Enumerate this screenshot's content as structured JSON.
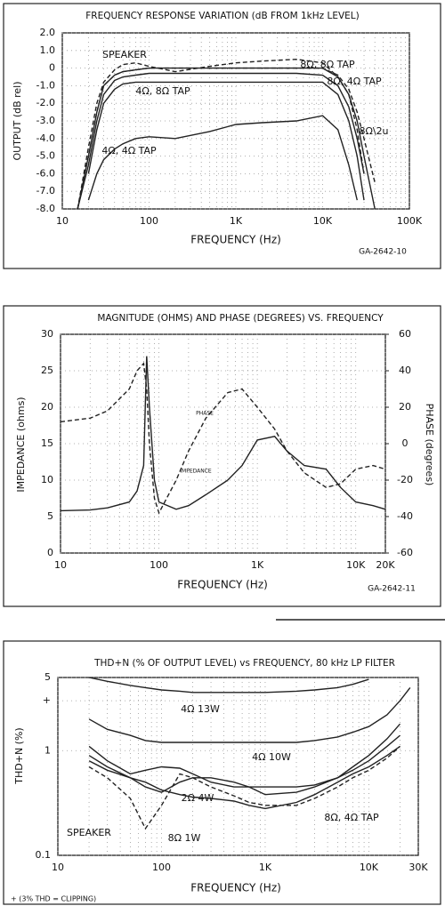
{
  "chart_data": [
    {
      "type": "line",
      "title": "FREQUENCY RESPONSE VARIATION (dB FROM 1kHz LEVEL)",
      "y_label": "OUTPUT (dB rel)",
      "x_label": "FREQUENCY (Hz)",
      "code": "GA-2642-10",
      "log_x": true,
      "grid": true,
      "xlim": [
        10,
        100000
      ],
      "ylim": [
        -8,
        2
      ],
      "xticks": [
        10,
        100,
        {
          "value": 1000,
          "label": "1K"
        },
        {
          "value": 10000,
          "label": "10K"
        },
        {
          "value": 100000,
          "label": "100K"
        }
      ],
      "yticks": [
        {
          "value": 2,
          "label": "2.0"
        },
        {
          "value": 1,
          "label": "1.0"
        },
        0,
        {
          "value": -1,
          "label": "-1.0"
        },
        {
          "value": -2,
          "label": "-2.0"
        },
        {
          "value": -3,
          "label": "-3.0"
        },
        {
          "value": -4,
          "label": "-4.0"
        },
        {
          "value": -5,
          "label": "-5.0"
        },
        {
          "value": -6,
          "label": "-6.0"
        },
        {
          "value": -7,
          "label": "-7.0"
        },
        {
          "value": -8,
          "label": "-8.0"
        }
      ],
      "x": [
        15,
        20,
        25,
        30,
        40,
        50,
        70,
        100,
        200,
        500,
        1000,
        2000,
        5000,
        10000,
        15000,
        20000,
        25000,
        30000,
        40000
      ],
      "series": [
        {
          "name": "8Ω, 8Ω TAP",
          "color": "#222",
          "values": [
            -8,
            -5,
            -2.5,
            -1,
            -0.4,
            -0.2,
            -0.1,
            0,
            0,
            0,
            0,
            0,
            0,
            0,
            -0.5,
            -1.5,
            -3,
            -5,
            -8
          ]
        },
        {
          "name": "8Ω, 4Ω TAP",
          "color": "#222",
          "values": [
            -8,
            -5.5,
            -3,
            -1.5,
            -0.7,
            -0.5,
            -0.4,
            -0.3,
            -0.3,
            -0.3,
            -0.3,
            -0.3,
            -0.3,
            -0.4,
            -1,
            -2.2,
            -4,
            -6,
            null
          ]
        },
        {
          "name": "4Ω, 8Ω TAP",
          "color": "#222",
          "values": [
            null,
            -6,
            -3.5,
            -2,
            -1.2,
            -0.9,
            -0.8,
            -0.8,
            -0.8,
            -0.8,
            -0.8,
            -0.8,
            -0.8,
            -0.8,
            -1.5,
            -3,
            -5,
            -7.5,
            null
          ]
        },
        {
          "name": "4Ω, 4Ω TAP",
          "color": "#222",
          "values": [
            null,
            -7.5,
            -6,
            -5.2,
            -4.6,
            -4.3,
            -4,
            -3.9,
            -4,
            -3.6,
            -3.2,
            -3.1,
            -3,
            -2.7,
            -3.5,
            -5.5,
            -7.5,
            null,
            null
          ]
        },
        {
          "name": "SPEAKER",
          "color": "#222",
          "dash": true,
          "values": [
            -8,
            -4.5,
            -2,
            -0.8,
            -0.1,
            0.2,
            0.3,
            0.1,
            -0.2,
            0.1,
            0.3,
            0.4,
            0.5,
            0.3,
            -0.5,
            -1.5,
            -3.5,
            -6,
            null
          ]
        },
        {
          "name": "8Ω\\2u",
          "color": "#222",
          "dash": true,
          "values": [
            -8,
            -5,
            -2.5,
            -1,
            -0.4,
            -0.2,
            -0.1,
            0,
            0,
            0,
            0,
            0,
            0,
            0,
            -0.4,
            -1.2,
            -2.5,
            -4,
            -6.5
          ]
        }
      ]
    },
    {
      "type": "line",
      "title": "MAGNITUDE (OHMS) AND PHASE (DEGREES) VS. FREQUENCY",
      "y_label": "IMPEDANCE (ohms)",
      "y2_label": "PHASE (degrees)",
      "x_label": "FREQUENCY (Hz)",
      "code": "GA-2642-11",
      "log_x": true,
      "grid": true,
      "xlim": [
        10,
        20000
      ],
      "ylim": [
        0,
        30
      ],
      "y2lim": [
        -60,
        60
      ],
      "xticks": [
        10,
        100,
        {
          "value": 1000,
          "label": "1K"
        },
        {
          "value": 10000,
          "label": "10K"
        },
        {
          "value": 20000,
          "label": "20K"
        }
      ],
      "yticks": [
        0,
        5,
        10,
        15,
        20,
        25,
        30
      ],
      "y2ticks": [
        -60,
        -40,
        -20,
        0,
        20,
        40,
        60
      ],
      "x": [
        10,
        20,
        30,
        50,
        60,
        70,
        75,
        80,
        90,
        100,
        150,
        200,
        300,
        500,
        700,
        1000,
        1500,
        2000,
        3000,
        5000,
        7000,
        10000,
        15000,
        20000
      ],
      "series": [
        {
          "name": "IMPEDANCE",
          "color": "#222",
          "values": [
            5.8,
            5.9,
            6.2,
            7,
            8.5,
            12,
            27,
            20,
            10,
            7,
            6,
            6.5,
            8,
            10,
            12,
            15.5,
            16,
            14,
            12,
            11.5,
            9,
            7,
            6.5,
            6
          ]
        },
        {
          "name": "PHASE",
          "color": "#222",
          "dash": true,
          "axis": "y2",
          "values": [
            12,
            14,
            18,
            30,
            40,
            44,
            30,
            0,
            -30,
            -38,
            -20,
            -4,
            14,
            28,
            30,
            20,
            8,
            -4,
            -16,
            -24,
            -22,
            -14,
            -12,
            -14
          ]
        }
      ]
    },
    {
      "type": "line",
      "title": "THD+N (% OF OUTPUT LEVEL) vs FREQUENCY, 80 kHz LP FILTER",
      "y_label": "THD+N (%)",
      "x_label": "FREQUENCY (Hz)",
      "footnote": "+ (3% THD = CLIPPING)",
      "log_x": true,
      "log_y": true,
      "grid": true,
      "xlim": [
        10,
        30000
      ],
      "ylim": [
        0.1,
        5
      ],
      "xticks": [
        10,
        100,
        {
          "value": 1000,
          "label": "1K"
        },
        {
          "value": 10000,
          "label": "10K"
        },
        {
          "value": 30000,
          "label": "30K"
        }
      ],
      "yticks": [
        0.1,
        1,
        {
          "value": 3,
          "label": "+"
        },
        5
      ],
      "x": [
        20,
        30,
        50,
        70,
        100,
        150,
        200,
        300,
        500,
        700,
        1000,
        2000,
        3000,
        5000,
        7000,
        10000,
        15000,
        20000,
        25000
      ],
      "series": [
        {
          "name": "4Ω 13W",
          "color": "#222",
          "values": [
            5,
            4.6,
            4.2,
            4,
            3.8,
            3.7,
            3.6,
            3.6,
            3.6,
            3.6,
            3.6,
            3.7,
            3.8,
            4,
            4.3,
            4.8,
            null,
            null,
            null
          ]
        },
        {
          "name": "4Ω 10W",
          "color": "#222",
          "values": [
            2,
            1.6,
            1.4,
            1.25,
            1.2,
            1.2,
            1.2,
            1.2,
            1.2,
            1.2,
            1.2,
            1.2,
            1.25,
            1.35,
            1.5,
            1.7,
            2.2,
            3,
            4
          ]
        },
        {
          "name": "2Ω 4W",
          "color": "#222",
          "values": [
            1.1,
            0.8,
            0.6,
            0.65,
            0.7,
            0.68,
            0.6,
            0.5,
            0.45,
            0.45,
            0.45,
            0.45,
            0.47,
            0.55,
            0.65,
            0.8,
            1.1,
            1.4,
            null
          ]
        },
        {
          "name": "8Ω 1W",
          "color": "#222",
          "values": [
            0.9,
            0.7,
            0.55,
            0.5,
            0.42,
            0.38,
            0.36,
            0.35,
            0.33,
            0.3,
            0.28,
            0.32,
            0.38,
            0.5,
            0.6,
            0.7,
            0.9,
            1.1,
            null
          ]
        },
        {
          "name": "8Ω, 4Ω TAP",
          "color": "#222",
          "values": [
            0.8,
            0.65,
            0.55,
            0.45,
            0.4,
            0.5,
            0.55,
            0.55,
            0.5,
            0.45,
            0.38,
            0.4,
            0.45,
            0.55,
            0.7,
            0.9,
            1.3,
            1.8,
            null
          ]
        },
        {
          "name": "SPEAKER",
          "color": "#222",
          "dash": true,
          "values": [
            0.7,
            0.55,
            0.35,
            0.18,
            0.3,
            0.6,
            0.55,
            0.45,
            0.37,
            0.32,
            0.3,
            0.3,
            0.35,
            0.45,
            0.55,
            0.65,
            0.85,
            1.1,
            null
          ]
        }
      ]
    }
  ]
}
